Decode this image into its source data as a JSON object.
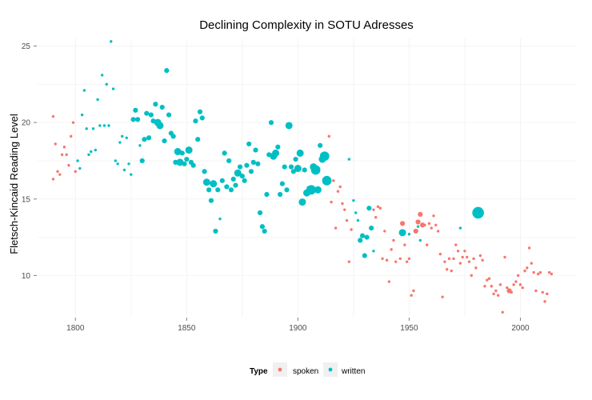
{
  "chart_data": {
    "type": "scatter",
    "title": "Declining Complexity in SOTU Adresses",
    "xlabel": "",
    "ylabel": "Fletsch-Kincaid Reading Level",
    "xlim": [
      1783,
      2025
    ],
    "ylim": [
      7.3,
      25.5
    ],
    "x_ticks": [
      "1800",
      "1850",
      "1900",
      "1950",
      "2000"
    ],
    "y_ticks": [
      "10",
      "15",
      "20",
      "25"
    ],
    "grid": true,
    "legend": {
      "title": "Type",
      "position": "bottom"
    },
    "series": [
      {
        "name": "spoken",
        "color": "#F8766D",
        "points": [
          [
            1790,
            20.4,
            1
          ],
          [
            1790,
            16.3,
            1
          ],
          [
            1791,
            18.6,
            1
          ],
          [
            1792,
            16.8,
            1
          ],
          [
            1793,
            16.6,
            1
          ],
          [
            1794,
            17.9,
            1
          ],
          [
            1795,
            18.4,
            1
          ],
          [
            1796,
            17.9,
            1
          ],
          [
            1797,
            17.2,
            1
          ],
          [
            1798,
            19.1,
            1
          ],
          [
            1799,
            20.0,
            1
          ],
          [
            1800,
            16.8,
            1
          ],
          [
            1913,
            16.1,
            2
          ],
          [
            1914,
            19.1,
            1
          ],
          [
            1915,
            14.8,
            1
          ],
          [
            1916,
            16.2,
            1
          ],
          [
            1917,
            13.1,
            1
          ],
          [
            1918,
            15.5,
            1
          ],
          [
            1919,
            15.8,
            1
          ],
          [
            1920,
            14.7,
            1
          ],
          [
            1921,
            14.3,
            1
          ],
          [
            1922,
            13.6,
            1
          ],
          [
            1923,
            10.9,
            1
          ],
          [
            1924,
            13.0,
            1
          ],
          [
            1934,
            14.3,
            1
          ],
          [
            1935,
            13.8,
            1
          ],
          [
            1936,
            14.5,
            1
          ],
          [
            1937,
            14.4,
            1
          ],
          [
            1938,
            11.1,
            1
          ],
          [
            1939,
            12.9,
            1
          ],
          [
            1940,
            11.0,
            1
          ],
          [
            1941,
            9.6,
            1
          ],
          [
            1942,
            11.7,
            1
          ],
          [
            1943,
            12.3,
            1
          ],
          [
            1944,
            10.9,
            1
          ],
          [
            1946,
            11.1,
            1
          ],
          [
            1947,
            13.4,
            2
          ],
          [
            1948,
            12.0,
            1
          ],
          [
            1949,
            10.9,
            1
          ],
          [
            1950,
            11.1,
            1
          ],
          [
            1951,
            8.7,
            1
          ],
          [
            1952,
            9.0,
            1
          ],
          [
            1953,
            12.9,
            2
          ],
          [
            1954,
            13.5,
            2
          ],
          [
            1955,
            14.0,
            2
          ],
          [
            1956,
            13.3,
            2
          ],
          [
            1957,
            13.3,
            1
          ],
          [
            1958,
            12.0,
            1
          ],
          [
            1959,
            13.4,
            1
          ],
          [
            1960,
            13.1,
            1
          ],
          [
            1961,
            13.9,
            1
          ],
          [
            1962,
            13.3,
            1
          ],
          [
            1963,
            12.9,
            1
          ],
          [
            1964,
            11.4,
            1
          ],
          [
            1965,
            8.6,
            1
          ],
          [
            1966,
            10.9,
            1
          ],
          [
            1967,
            10.4,
            1
          ],
          [
            1968,
            11.1,
            1
          ],
          [
            1969,
            10.3,
            1
          ],
          [
            1970,
            11.1,
            1
          ],
          [
            1971,
            12.0,
            1
          ],
          [
            1972,
            11.6,
            1
          ],
          [
            1973,
            10.8,
            1
          ],
          [
            1974,
            11.2,
            1
          ],
          [
            1975,
            11.6,
            1
          ],
          [
            1976,
            11.2,
            1
          ],
          [
            1977,
            10.9,
            1
          ],
          [
            1978,
            10.0,
            1
          ],
          [
            1979,
            11.1,
            1
          ],
          [
            1980,
            10.5,
            1
          ],
          [
            1982,
            11.3,
            1
          ],
          [
            1983,
            11.0,
            1
          ],
          [
            1984,
            9.3,
            1
          ],
          [
            1985,
            9.7,
            1
          ],
          [
            1986,
            9.8,
            1
          ],
          [
            1987,
            9.3,
            1
          ],
          [
            1988,
            8.8,
            1
          ],
          [
            1989,
            9.0,
            1
          ],
          [
            1990,
            8.7,
            1
          ],
          [
            1991,
            9.4,
            1
          ],
          [
            1992,
            7.6,
            1
          ],
          [
            1993,
            11.2,
            1
          ],
          [
            1994,
            9.2,
            1
          ],
          [
            1995,
            9.0,
            2
          ],
          [
            1996,
            8.9,
            1
          ],
          [
            1997,
            9.4,
            1
          ],
          [
            1998,
            9.6,
            1
          ],
          [
            1999,
            10.0,
            1
          ],
          [
            2000,
            9.4,
            1
          ],
          [
            2001,
            9.2,
            1
          ],
          [
            2002,
            10.3,
            1
          ],
          [
            2003,
            10.5,
            1
          ],
          [
            2004,
            11.8,
            1
          ],
          [
            2005,
            10.8,
            1
          ],
          [
            2006,
            10.2,
            1
          ],
          [
            2007,
            9.0,
            1
          ],
          [
            2008,
            10.1,
            1
          ],
          [
            2009,
            10.2,
            1
          ],
          [
            2010,
            8.9,
            1
          ],
          [
            2011,
            8.3,
            1
          ],
          [
            2012,
            8.8,
            1
          ],
          [
            2013,
            10.2,
            1
          ],
          [
            2014,
            10.1,
            1
          ]
        ]
      },
      {
        "name": "written",
        "color": "#00BFC4",
        "points": [
          [
            1801,
            17.5,
            1
          ],
          [
            1802,
            17.0,
            1
          ],
          [
            1803,
            20.5,
            1
          ],
          [
            1804,
            22.1,
            1
          ],
          [
            1805,
            19.6,
            1
          ],
          [
            1806,
            17.9,
            1
          ],
          [
            1807,
            18.1,
            1
          ],
          [
            1808,
            19.6,
            1
          ],
          [
            1809,
            18.2,
            1
          ],
          [
            1810,
            21.5,
            1
          ],
          [
            1811,
            19.8,
            1
          ],
          [
            1812,
            23.1,
            1
          ],
          [
            1813,
            19.8,
            1
          ],
          [
            1814,
            22.5,
            1
          ],
          [
            1815,
            19.8,
            1
          ],
          [
            1816,
            25.3,
            1
          ],
          [
            1817,
            22.2,
            1
          ],
          [
            1818,
            17.5,
            1
          ],
          [
            1819,
            17.3,
            1
          ],
          [
            1820,
            18.7,
            1
          ],
          [
            1821,
            19.1,
            1
          ],
          [
            1822,
            16.9,
            1
          ],
          [
            1823,
            19.0,
            1
          ],
          [
            1824,
            17.3,
            1
          ],
          [
            1825,
            16.6,
            1
          ],
          [
            1826,
            20.2,
            2
          ],
          [
            1827,
            20.8,
            2
          ],
          [
            1828,
            20.2,
            2
          ],
          [
            1829,
            18.5,
            1
          ],
          [
            1830,
            17.5,
            2
          ],
          [
            1831,
            18.9,
            2
          ],
          [
            1832,
            20.6,
            2
          ],
          [
            1833,
            19.0,
            2
          ],
          [
            1834,
            20.5,
            2
          ],
          [
            1835,
            20.1,
            2
          ],
          [
            1836,
            21.2,
            2
          ],
          [
            1837,
            20.0,
            3
          ],
          [
            1838,
            19.8,
            3
          ],
          [
            1839,
            21.0,
            2
          ],
          [
            1840,
            18.8,
            2
          ],
          [
            1841,
            23.4,
            2
          ],
          [
            1842,
            20.5,
            2
          ],
          [
            1843,
            19.3,
            2
          ],
          [
            1844,
            19.1,
            2
          ],
          [
            1845,
            17.4,
            2
          ],
          [
            1846,
            18.1,
            3
          ],
          [
            1847,
            17.4,
            3
          ],
          [
            1848,
            18.0,
            2
          ],
          [
            1849,
            17.3,
            2
          ],
          [
            1850,
            17.6,
            2
          ],
          [
            1851,
            18.2,
            3
          ],
          [
            1852,
            17.4,
            2
          ],
          [
            1853,
            17.2,
            2
          ],
          [
            1854,
            20.1,
            2
          ],
          [
            1855,
            18.9,
            2
          ],
          [
            1856,
            20.7,
            2
          ],
          [
            1857,
            20.3,
            2
          ],
          [
            1858,
            16.8,
            2
          ],
          [
            1859,
            16.1,
            3
          ],
          [
            1860,
            15.6,
            2
          ],
          [
            1861,
            14.9,
            2
          ],
          [
            1862,
            16.0,
            3
          ],
          [
            1863,
            12.9,
            2
          ],
          [
            1864,
            15.6,
            2
          ],
          [
            1865,
            13.7,
            1
          ],
          [
            1866,
            16.2,
            2
          ],
          [
            1867,
            18.0,
            2
          ],
          [
            1868,
            15.8,
            2
          ],
          [
            1869,
            17.5,
            2
          ],
          [
            1870,
            15.6,
            2
          ],
          [
            1871,
            16.3,
            2
          ],
          [
            1872,
            15.9,
            2
          ],
          [
            1873,
            16.7,
            3
          ],
          [
            1874,
            17.1,
            2
          ],
          [
            1875,
            16.5,
            2
          ],
          [
            1876,
            16.2,
            2
          ],
          [
            1877,
            17.2,
            2
          ],
          [
            1878,
            18.6,
            2
          ],
          [
            1879,
            16.8,
            2
          ],
          [
            1880,
            17.4,
            2
          ],
          [
            1881,
            18.2,
            2
          ],
          [
            1882,
            17.3,
            2
          ],
          [
            1883,
            14.1,
            2
          ],
          [
            1884,
            13.2,
            2
          ],
          [
            1885,
            12.9,
            2
          ],
          [
            1886,
            15.3,
            2
          ],
          [
            1887,
            17.9,
            2
          ],
          [
            1888,
            20.0,
            2
          ],
          [
            1889,
            17.8,
            3
          ],
          [
            1890,
            18.0,
            3
          ],
          [
            1891,
            18.4,
            2
          ],
          [
            1892,
            15.3,
            2
          ],
          [
            1893,
            16.0,
            2
          ],
          [
            1894,
            17.1,
            2
          ],
          [
            1895,
            15.6,
            2
          ],
          [
            1896,
            19.8,
            3
          ],
          [
            1897,
            17.1,
            2
          ],
          [
            1898,
            16.8,
            2
          ],
          [
            1899,
            17.6,
            2
          ],
          [
            1900,
            17.0,
            3
          ],
          [
            1901,
            18.0,
            3
          ],
          [
            1902,
            14.8,
            3
          ],
          [
            1903,
            16.9,
            2
          ],
          [
            1904,
            15.4,
            3
          ],
          [
            1905,
            15.7,
            2
          ],
          [
            1906,
            15.6,
            4
          ],
          [
            1907,
            17.1,
            3
          ],
          [
            1908,
            16.9,
            4
          ],
          [
            1909,
            15.6,
            3
          ],
          [
            1910,
            18.5,
            2
          ],
          [
            1911,
            17.6,
            3
          ],
          [
            1912,
            17.8,
            4
          ],
          [
            1913,
            16.2,
            4
          ],
          [
            1923,
            17.6,
            1
          ],
          [
            1925,
            14.9,
            1
          ],
          [
            1926,
            14.1,
            1
          ],
          [
            1927,
            13.6,
            1
          ],
          [
            1928,
            12.3,
            2
          ],
          [
            1929,
            12.6,
            2
          ],
          [
            1930,
            11.3,
            2
          ],
          [
            1931,
            12.5,
            2
          ],
          [
            1932,
            14.4,
            2
          ],
          [
            1933,
            13.1,
            2
          ],
          [
            1934,
            11.6,
            1
          ],
          [
            1947,
            12.8,
            3
          ],
          [
            1950,
            12.7,
            1
          ],
          [
            1954,
            13.2,
            1
          ],
          [
            1955,
            12.3,
            1
          ],
          [
            1973,
            13.1,
            1
          ],
          [
            1981,
            14.1,
            5
          ]
        ]
      }
    ]
  }
}
